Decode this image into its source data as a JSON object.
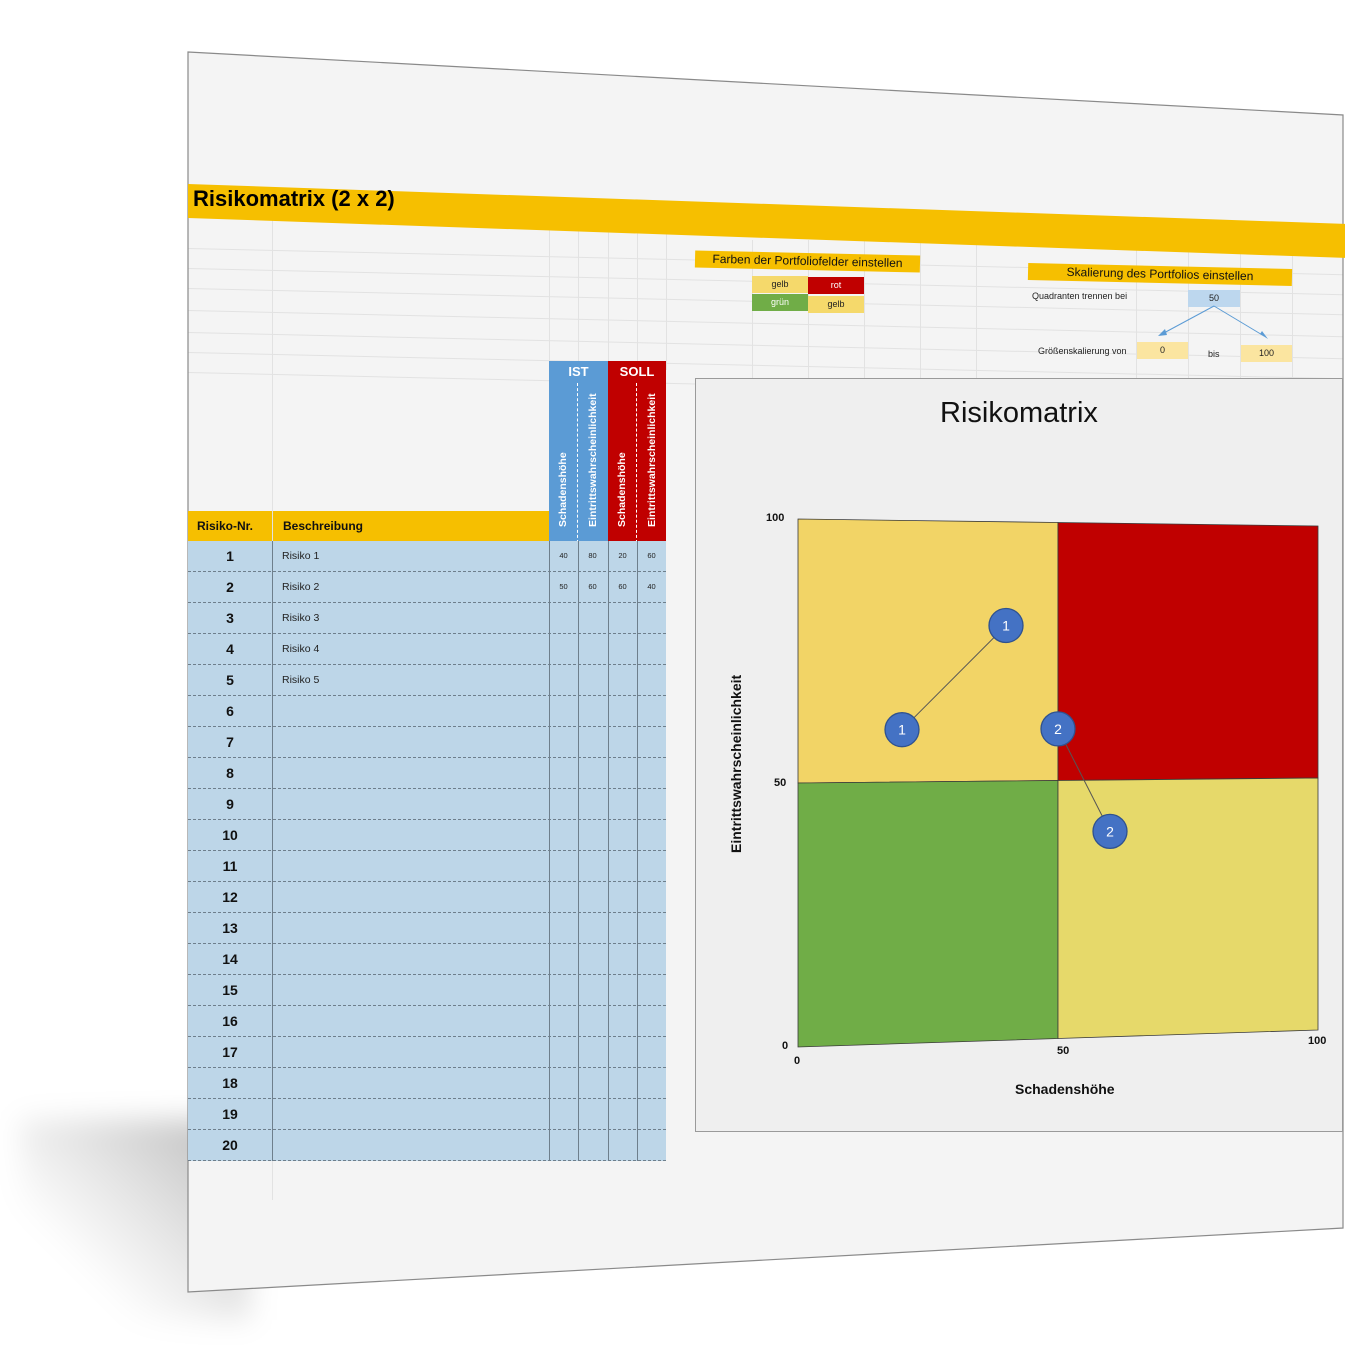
{
  "title": "Risikomatrix (2 x 2)",
  "colors_panel": {
    "heading": "Farben der Portfoliofelder einstellen",
    "cells": [
      {
        "label": "gelb",
        "color": "#f5d96b"
      },
      {
        "label": "rot",
        "color": "#c00000"
      },
      {
        "label": "grün",
        "color": "#70ad47"
      },
      {
        "label": "gelb",
        "color": "#f5d96b"
      }
    ]
  },
  "scaling_panel": {
    "heading": "Skalierung des Portfolios einstellen",
    "split_label": "Quadranten trennen bei",
    "split_value": "50",
    "range_label": "Größenskalierung von",
    "range_from": "0",
    "range_sep": "bis",
    "range_to": "100"
  },
  "table": {
    "col_nr": "Risiko-Nr.",
    "col_desc": "Beschreibung",
    "group_ist": "IST",
    "group_soll": "SOLL",
    "sub_cols": [
      "Schadenshöhe",
      "Eintrittswahrscheinlichkeit",
      "Schadenshöhe",
      "Eintrittswahrscheinlichkeit"
    ],
    "rows": [
      {
        "nr": "1",
        "desc": "Risiko 1",
        "ist_s": "40",
        "ist_e": "80",
        "soll_s": "20",
        "soll_e": "60"
      },
      {
        "nr": "2",
        "desc": "Risiko 2",
        "ist_s": "50",
        "ist_e": "60",
        "soll_s": "60",
        "soll_e": "40"
      },
      {
        "nr": "3",
        "desc": "Risiko 3",
        "ist_s": "",
        "ist_e": "",
        "soll_s": "",
        "soll_e": ""
      },
      {
        "nr": "4",
        "desc": "Risiko 4",
        "ist_s": "",
        "ist_e": "",
        "soll_s": "",
        "soll_e": ""
      },
      {
        "nr": "5",
        "desc": "Risiko 5",
        "ist_s": "",
        "ist_e": "",
        "soll_s": "",
        "soll_e": ""
      },
      {
        "nr": "6",
        "desc": "",
        "ist_s": "",
        "ist_e": "",
        "soll_s": "",
        "soll_e": ""
      },
      {
        "nr": "7",
        "desc": "",
        "ist_s": "",
        "ist_e": "",
        "soll_s": "",
        "soll_e": ""
      },
      {
        "nr": "8",
        "desc": "",
        "ist_s": "",
        "ist_e": "",
        "soll_s": "",
        "soll_e": ""
      },
      {
        "nr": "9",
        "desc": "",
        "ist_s": "",
        "ist_e": "",
        "soll_s": "",
        "soll_e": ""
      },
      {
        "nr": "10",
        "desc": "",
        "ist_s": "",
        "ist_e": "",
        "soll_s": "",
        "soll_e": ""
      },
      {
        "nr": "11",
        "desc": "",
        "ist_s": "",
        "ist_e": "",
        "soll_s": "",
        "soll_e": ""
      },
      {
        "nr": "12",
        "desc": "",
        "ist_s": "",
        "ist_e": "",
        "soll_s": "",
        "soll_e": ""
      },
      {
        "nr": "13",
        "desc": "",
        "ist_s": "",
        "ist_e": "",
        "soll_s": "",
        "soll_e": ""
      },
      {
        "nr": "14",
        "desc": "",
        "ist_s": "",
        "ist_e": "",
        "soll_s": "",
        "soll_e": ""
      },
      {
        "nr": "15",
        "desc": "",
        "ist_s": "",
        "ist_e": "",
        "soll_s": "",
        "soll_e": ""
      },
      {
        "nr": "16",
        "desc": "",
        "ist_s": "",
        "ist_e": "",
        "soll_s": "",
        "soll_e": ""
      },
      {
        "nr": "17",
        "desc": "",
        "ist_s": "",
        "ist_e": "",
        "soll_s": "",
        "soll_e": ""
      },
      {
        "nr": "18",
        "desc": "",
        "ist_s": "",
        "ist_e": "",
        "soll_s": "",
        "soll_e": ""
      },
      {
        "nr": "19",
        "desc": "",
        "ist_s": "",
        "ist_e": "",
        "soll_s": "",
        "soll_e": ""
      },
      {
        "nr": "20",
        "desc": "",
        "ist_s": "",
        "ist_e": "",
        "soll_s": "",
        "soll_e": ""
      }
    ]
  },
  "chart_data": {
    "type": "scatter",
    "title": "Risikomatrix",
    "xlabel": "Schadenshöhe",
    "ylabel": "Eintrittswahrscheinlichkeit",
    "xlim": [
      0,
      100
    ],
    "ylim": [
      0,
      100
    ],
    "x_ticks": [
      "0",
      "50",
      "100"
    ],
    "y_ticks": [
      "0",
      "50",
      "100"
    ],
    "quadrant_split": 50,
    "quadrant_colors": {
      "top_left": "#f2d466",
      "top_right": "#c00000",
      "bottom_left": "#70ad47",
      "bottom_right": "#e6d96a"
    },
    "marker_color": "#4472c4",
    "points": [
      {
        "label": "1",
        "ist": [
          40,
          80
        ],
        "soll": [
          20,
          60
        ]
      },
      {
        "label": "2",
        "ist": [
          50,
          60
        ],
        "soll": [
          60,
          40
        ]
      }
    ]
  }
}
